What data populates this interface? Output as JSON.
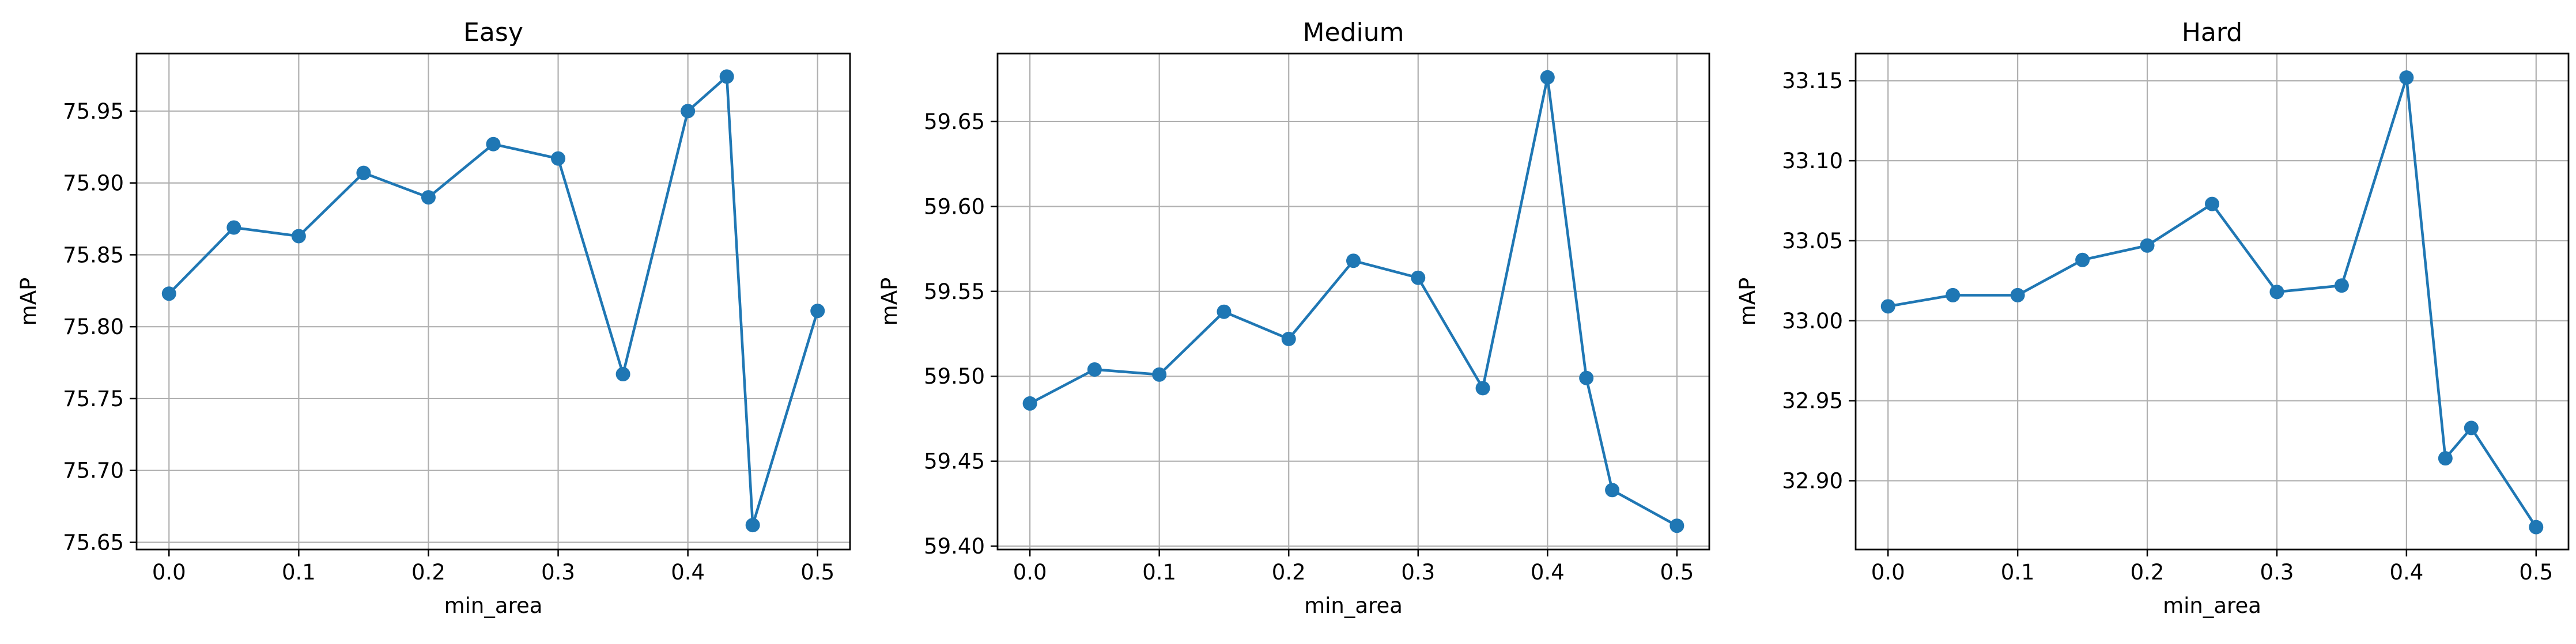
{
  "figure": {
    "background": "#ffffff"
  },
  "style": {
    "line_color": "#1f77b4",
    "grid_color": "#b0b0b0",
    "axis_color": "#000000"
  },
  "chart_data": [
    {
      "type": "line",
      "title": "Easy",
      "xlabel": "min_area",
      "ylabel": "mAP",
      "grid": true,
      "x": [
        0.0,
        0.05,
        0.1,
        0.15,
        0.2,
        0.25,
        0.3,
        0.35,
        0.4,
        0.43,
        0.45,
        0.5
      ],
      "series": [
        {
          "values": [
            75.823,
            75.869,
            75.863,
            75.907,
            75.89,
            75.927,
            75.917,
            75.767,
            75.95,
            75.974,
            75.662,
            75.811
          ]
        }
      ],
      "xlim": [
        -0.025,
        0.525
      ],
      "ylim": [
        75.645,
        75.99
      ],
      "xticks": [
        0.0,
        0.1,
        0.2,
        0.3,
        0.4,
        0.5
      ],
      "xtick_labels": [
        "0.0",
        "0.1",
        "0.2",
        "0.3",
        "0.4",
        "0.5"
      ],
      "yticks": [
        75.65,
        75.7,
        75.75,
        75.8,
        75.85,
        75.9,
        75.95
      ],
      "ytick_labels": [
        "75.65",
        "75.70",
        "75.75",
        "75.80",
        "75.85",
        "75.90",
        "75.95"
      ]
    },
    {
      "type": "line",
      "title": "Medium",
      "xlabel": "min_area",
      "ylabel": "mAP",
      "grid": true,
      "x": [
        0.0,
        0.05,
        0.1,
        0.15,
        0.2,
        0.25,
        0.3,
        0.35,
        0.4,
        0.43,
        0.45,
        0.5
      ],
      "series": [
        {
          "values": [
            59.484,
            59.504,
            59.501,
            59.538,
            59.522,
            59.568,
            59.558,
            59.493,
            59.676,
            59.499,
            59.433,
            59.412
          ]
        }
      ],
      "xlim": [
        -0.025,
        0.525
      ],
      "ylim": [
        59.398,
        59.69
      ],
      "xticks": [
        0.0,
        0.1,
        0.2,
        0.3,
        0.4,
        0.5
      ],
      "xtick_labels": [
        "0.0",
        "0.1",
        "0.2",
        "0.3",
        "0.4",
        "0.5"
      ],
      "yticks": [
        59.4,
        59.45,
        59.5,
        59.55,
        59.6,
        59.65
      ],
      "ytick_labels": [
        "59.40",
        "59.45",
        "59.50",
        "59.55",
        "59.60",
        "59.65"
      ]
    },
    {
      "type": "line",
      "title": "Hard",
      "xlabel": "min_area",
      "ylabel": "mAP",
      "grid": true,
      "x": [
        0.0,
        0.05,
        0.1,
        0.15,
        0.2,
        0.25,
        0.3,
        0.35,
        0.4,
        0.43,
        0.45,
        0.5
      ],
      "series": [
        {
          "values": [
            33.009,
            33.016,
            33.016,
            33.038,
            33.047,
            33.073,
            33.018,
            33.022,
            33.152,
            32.914,
            32.933,
            32.871
          ]
        }
      ],
      "xlim": [
        -0.025,
        0.525
      ],
      "ylim": [
        32.857,
        33.167
      ],
      "xticks": [
        0.0,
        0.1,
        0.2,
        0.3,
        0.4,
        0.5
      ],
      "xtick_labels": [
        "0.0",
        "0.1",
        "0.2",
        "0.3",
        "0.4",
        "0.5"
      ],
      "yticks": [
        32.9,
        32.95,
        33.0,
        33.05,
        33.1,
        33.15
      ],
      "ytick_labels": [
        "32.90",
        "32.95",
        "33.00",
        "33.05",
        "33.10",
        "33.15"
      ]
    }
  ]
}
